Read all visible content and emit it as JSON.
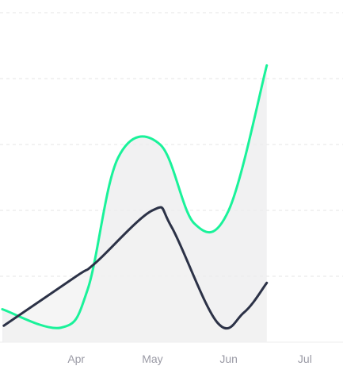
{
  "chart_data": {
    "type": "area",
    "categories": [
      "Apr",
      "May",
      "Jun",
      "Jul"
    ],
    "category_points": [
      0,
      1,
      2,
      3
    ],
    "xlim": [
      -1.0,
      3.5
    ],
    "ylim": [
      0,
      500
    ],
    "yticks": [
      0,
      100,
      200,
      300,
      400,
      500
    ],
    "grid": true,
    "legend": "none",
    "series": [
      {
        "color": "#1af29a",
        "area_fill": "#ececee",
        "points": [
          {
            "x": -0.97,
            "y": 50
          },
          {
            "x": -0.2,
            "y": 22
          },
          {
            "x": 0.15,
            "y": 80
          },
          {
            "x": 0.55,
            "y": 280
          },
          {
            "x": 1.1,
            "y": 300
          },
          {
            "x": 1.55,
            "y": 180
          },
          {
            "x": 2.0,
            "y": 200
          },
          {
            "x": 2.5,
            "y": 420
          }
        ]
      },
      {
        "color": "#2c3247",
        "area_fill": "#f1f1f2",
        "points": [
          {
            "x": -0.95,
            "y": 25
          },
          {
            "x": 0.0,
            "y": 100
          },
          {
            "x": 0.25,
            "y": 120
          },
          {
            "x": 1.0,
            "y": 200
          },
          {
            "x": 1.25,
            "y": 175
          },
          {
            "x": 1.85,
            "y": 30
          },
          {
            "x": 2.2,
            "y": 45
          },
          {
            "x": 2.5,
            "y": 90
          }
        ]
      }
    ]
  }
}
